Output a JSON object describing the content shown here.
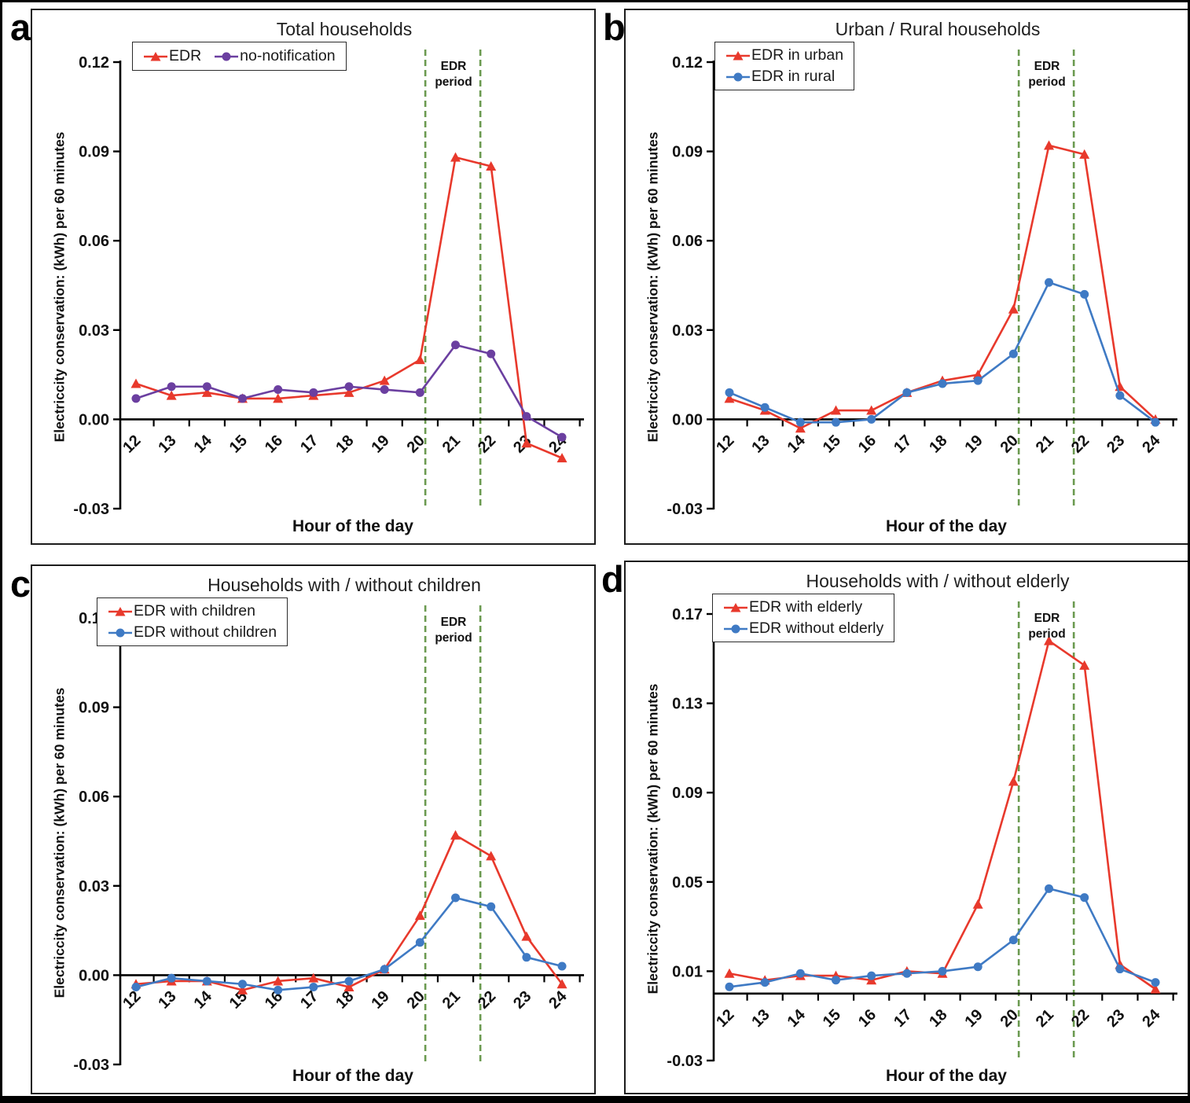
{
  "figure": {
    "x_axis_title": "Hour of the day",
    "y_axis_title": "Electriccity conservation: (kWh) per 60 minutes",
    "colors": {
      "edr_red": "#e8392c",
      "no_notification_purple": "#6b3fa0",
      "edr_blue": "#3f7ac4",
      "period_dash_green": "#6b9a50",
      "axis_black": "#000000"
    }
  },
  "chart_data": [
    {
      "type": "line",
      "panel_letter": "a",
      "title": "Total households",
      "xlabel": "Hour of the day",
      "ylabel": "Electriccity conservation: (kWh) per 60 minutes",
      "x": [
        12,
        13,
        14,
        15,
        16,
        17,
        18,
        19,
        20,
        21,
        22,
        23,
        24
      ],
      "ylim": [
        -0.03,
        0.12
      ],
      "yticks": [
        0.12,
        0.09,
        0.06,
        0.03,
        0.0,
        -0.03
      ],
      "x_axis_at_y": 0,
      "grid": false,
      "legend_position": "top-left",
      "legend_rows": 1,
      "annotation": {
        "label_lines": [
          "EDR",
          "period"
        ],
        "vline_x": [
          20.15,
          21.7
        ],
        "style": "dashed-green"
      },
      "series": [
        {
          "name": "EDR",
          "marker": "triangle",
          "color_key": "edr_red",
          "values": [
            0.012,
            0.008,
            0.009,
            0.007,
            0.007,
            0.008,
            0.009,
            0.013,
            0.02,
            0.088,
            0.085,
            -0.008,
            -0.013
          ]
        },
        {
          "name": "no-notification",
          "marker": "circle",
          "color_key": "no_notification_purple",
          "values": [
            0.007,
            0.011,
            0.011,
            0.007,
            0.01,
            0.009,
            0.011,
            0.01,
            0.009,
            0.025,
            0.022,
            0.001,
            -0.006
          ]
        }
      ]
    },
    {
      "type": "line",
      "panel_letter": "b",
      "title": "Urban / Rural households",
      "xlabel": "Hour of the day",
      "ylabel": "Electriccity conservation: (kWh) per 60 minutes",
      "x": [
        12,
        13,
        14,
        15,
        16,
        17,
        18,
        19,
        20,
        21,
        22,
        23,
        24
      ],
      "ylim": [
        -0.03,
        0.12
      ],
      "yticks": [
        0.12,
        0.09,
        0.06,
        0.03,
        0.0,
        -0.03
      ],
      "x_axis_at_y": 0,
      "grid": false,
      "legend_position": "top-left",
      "legend_rows": 2,
      "annotation": {
        "label_lines": [
          "EDR",
          "period"
        ],
        "vline_x": [
          20.15,
          21.7
        ],
        "style": "dashed-green"
      },
      "series": [
        {
          "name": "EDR in urban",
          "marker": "triangle",
          "color_key": "edr_red",
          "values": [
            0.007,
            0.003,
            -0.003,
            0.003,
            0.003,
            0.009,
            0.013,
            0.015,
            0.037,
            0.092,
            0.089,
            0.011,
            0.0
          ]
        },
        {
          "name": "EDR in rural",
          "marker": "circle",
          "color_key": "edr_blue",
          "values": [
            0.009,
            0.004,
            -0.001,
            -0.001,
            0.0,
            0.009,
            0.012,
            0.013,
            0.022,
            0.046,
            0.042,
            0.008,
            -0.001
          ]
        }
      ]
    },
    {
      "type": "line",
      "panel_letter": "c",
      "title": "Households with / without children",
      "xlabel": "Hour of the day",
      "ylabel": "Electriccity conservation: (kWh) per 60 minutes",
      "x": [
        12,
        13,
        14,
        15,
        16,
        17,
        18,
        19,
        20,
        21,
        22,
        23,
        24
      ],
      "ylim": [
        -0.03,
        0.12
      ],
      "yticks": [
        0.12,
        0.09,
        0.06,
        0.03,
        0.0,
        -0.03
      ],
      "x_axis_at_y": 0,
      "grid": false,
      "legend_position": "top-left",
      "legend_rows": 2,
      "annotation": {
        "label_lines": [
          "EDR",
          "period"
        ],
        "vline_x": [
          20.15,
          21.7
        ],
        "style": "dashed-green"
      },
      "series": [
        {
          "name": "EDR with children",
          "marker": "triangle",
          "color_key": "edr_red",
          "values": [
            -0.003,
            -0.002,
            -0.002,
            -0.005,
            -0.002,
            -0.001,
            -0.004,
            0.002,
            0.02,
            0.047,
            0.04,
            0.013,
            -0.003
          ]
        },
        {
          "name": "EDR without children",
          "marker": "circle",
          "color_key": "edr_blue",
          "values": [
            -0.004,
            -0.001,
            -0.002,
            -0.003,
            -0.005,
            -0.004,
            -0.002,
            0.002,
            0.011,
            0.026,
            0.023,
            0.006,
            0.003
          ]
        }
      ]
    },
    {
      "type": "line",
      "panel_letter": "d",
      "title": "Households with / without elderly",
      "xlabel": "Hour of the day",
      "ylabel": "Electriccity conservation: (kWh) per 60 minutes",
      "x": [
        12,
        13,
        14,
        15,
        16,
        17,
        18,
        19,
        20,
        21,
        22,
        23,
        24
      ],
      "ylim": [
        -0.03,
        0.17
      ],
      "yticks": [
        0.17,
        0.13,
        0.09,
        0.05,
        0.01,
        -0.03
      ],
      "x_axis_at_y": 0,
      "grid": false,
      "legend_position": "top-left",
      "legend_rows": 2,
      "annotation": {
        "label_lines": [
          "EDR",
          "period"
        ],
        "vline_x": [
          20.15,
          21.7
        ],
        "style": "dashed-green"
      },
      "series": [
        {
          "name": "EDR with elderly",
          "marker": "triangle",
          "color_key": "edr_red",
          "values": [
            0.009,
            0.006,
            0.008,
            0.008,
            0.006,
            0.01,
            0.009,
            0.04,
            0.095,
            0.158,
            0.147,
            0.013,
            0.002
          ]
        },
        {
          "name": "EDR without elderly",
          "marker": "circle",
          "color_key": "edr_blue",
          "values": [
            0.003,
            0.005,
            0.009,
            0.006,
            0.008,
            0.009,
            0.01,
            0.012,
            0.024,
            0.047,
            0.043,
            0.011,
            0.005
          ]
        }
      ]
    }
  ]
}
